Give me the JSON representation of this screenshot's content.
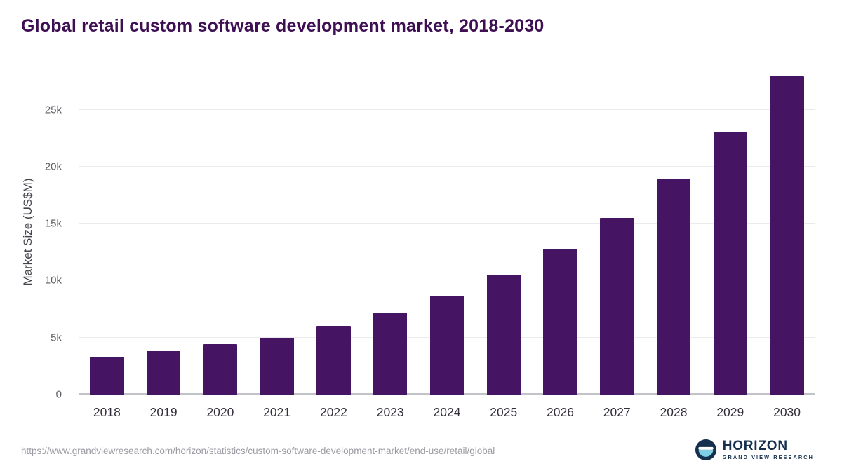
{
  "source_url": "https://www.grandviewresearch.com/horizon/statistics/custom-software-development-market/end-use/retail/global",
  "logo": {
    "name": "HORIZON",
    "subtitle": "GRAND VIEW RESEARCH"
  },
  "colors": {
    "bar": "#451463",
    "title": "#3e1053",
    "gridline": "#ebebee",
    "axis_line": "#c2c2c9",
    "logo_navy": "#14304e",
    "logo_teal": "#7ecfe4"
  },
  "chart_data": {
    "type": "bar",
    "title": "Global retail custom software development market, 2018-2030",
    "xlabel": "",
    "ylabel": "Market Size (US$M)",
    "categories": [
      "2018",
      "2019",
      "2020",
      "2021",
      "2022",
      "2023",
      "2024",
      "2025",
      "2026",
      "2027",
      "2028",
      "2029",
      "2030"
    ],
    "values": [
      3300,
      3800,
      4400,
      5000,
      6000,
      7200,
      8700,
      10500,
      12800,
      15500,
      18900,
      23000,
      27900
    ],
    "unit": "US$M",
    "ylim": [
      0,
      28600
    ],
    "yticks": [
      {
        "label": "0",
        "value": 0
      },
      {
        "label": "5k",
        "value": 5000
      },
      {
        "label": "10k",
        "value": 10000
      },
      {
        "label": "15k",
        "value": 15000
      },
      {
        "label": "20k",
        "value": 20000
      },
      {
        "label": "25k",
        "value": 25000
      }
    ],
    "grid": true,
    "legend_position": "none",
    "bar_color": "#451463"
  }
}
